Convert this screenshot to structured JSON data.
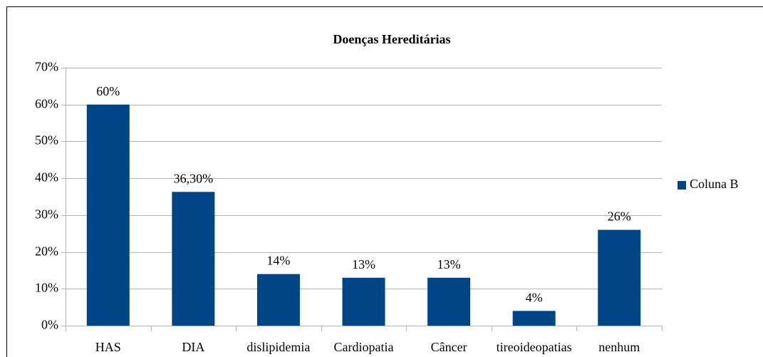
{
  "chart_data": {
    "type": "bar",
    "title": "Doenças Hereditárias",
    "categories": [
      "HAS",
      "DIA",
      "dislipidemia",
      "Cardiopatia",
      "Câncer",
      "tireoideopatias",
      "nenhum"
    ],
    "series": [
      {
        "name": "Coluna B",
        "color": "#004586",
        "values": [
          60,
          36.3,
          14,
          13,
          13,
          4,
          26
        ],
        "value_labels": [
          "60%",
          "36,30%",
          "14%",
          "13%",
          "13%",
          "4%",
          "26%"
        ]
      }
    ],
    "ylim": [
      0,
      70
    ],
    "yticks": [
      {
        "value": 0,
        "label": "0%"
      },
      {
        "value": 10,
        "label": "10%"
      },
      {
        "value": 20,
        "label": "20%"
      },
      {
        "value": 30,
        "label": "30%"
      },
      {
        "value": 40,
        "label": "40%"
      },
      {
        "value": 50,
        "label": "50%"
      },
      {
        "value": 60,
        "label": "60%"
      },
      {
        "value": 70,
        "label": "70%"
      }
    ],
    "grid": true,
    "legend": "right"
  }
}
